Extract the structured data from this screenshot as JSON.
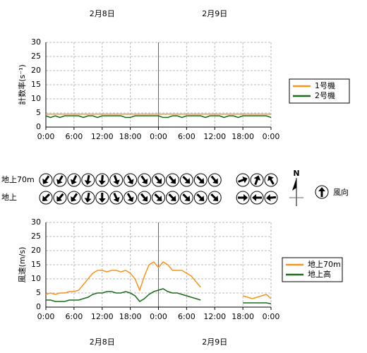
{
  "date_labels": [
    "2月8日",
    "2月9日"
  ],
  "chart_data": [
    {
      "type": "line",
      "ylabel": "計数率(s⁻¹)",
      "xlim": [
        0,
        48
      ],
      "ylim": [
        0,
        30
      ],
      "yticks": [
        0,
        5,
        10,
        15,
        20,
        25,
        30
      ],
      "xticks": [
        {
          "value": 0,
          "label": "0:00"
        },
        {
          "value": 6,
          "label": "6:00"
        },
        {
          "value": 12,
          "label": "12:00"
        },
        {
          "value": 18,
          "label": "18:00"
        },
        {
          "value": 24,
          "label": "0:00"
        },
        {
          "value": 30,
          "label": "6:00"
        },
        {
          "value": 36,
          "label": "12:00"
        },
        {
          "value": 42,
          "label": "18:00"
        },
        {
          "value": 48,
          "label": "0:00"
        }
      ],
      "grid": true,
      "day_boundary": 24,
      "x": [
        0,
        1,
        2,
        3,
        4,
        5,
        6,
        7,
        8,
        9,
        10,
        11,
        12,
        13,
        14,
        15,
        16,
        17,
        18,
        19,
        20,
        21,
        22,
        23,
        24,
        25,
        26,
        27,
        28,
        29,
        30,
        31,
        32,
        33,
        34,
        35,
        36,
        37,
        38,
        39,
        40,
        41,
        42,
        43,
        44,
        45,
        46,
        47,
        48
      ],
      "series": [
        {
          "name": "1号機",
          "color": "#f7941d",
          "values": [
            4.6,
            4.6,
            4.6,
            4.6,
            4.6,
            4.6,
            4.6,
            4.6,
            4.6,
            4.6,
            4.6,
            4.6,
            4.6,
            4.6,
            4.6,
            4.6,
            4.6,
            4.6,
            4.6,
            4.6,
            4.6,
            4.6,
            4.6,
            4.6,
            4.6,
            4.6,
            4.6,
            4.6,
            4.6,
            4.6,
            4.6,
            4.6,
            4.6,
            4.6,
            4.6,
            4.6,
            4.6,
            4.6,
            4.6,
            4.6,
            4.6,
            4.6,
            4.6,
            4.6,
            4.6,
            4.6,
            4.6,
            4.6,
            4.6
          ]
        },
        {
          "name": "2号機",
          "color": "#1a6b1a",
          "values": [
            4,
            3.4,
            4,
            3.4,
            4,
            4,
            4,
            4,
            3.4,
            4,
            4,
            3.4,
            4,
            4,
            4,
            4,
            4,
            3.4,
            3.4,
            4,
            4,
            4,
            4,
            4,
            4,
            3.4,
            3.4,
            4,
            4,
            3.4,
            4,
            4,
            4,
            4,
            3.4,
            4,
            4,
            4,
            3.4,
            4,
            4,
            3.4,
            4,
            4,
            4,
            4,
            4,
            4,
            3.4
          ]
        }
      ]
    },
    {
      "type": "wind_direction",
      "x": [
        0,
        3,
        6,
        9,
        12,
        15,
        18,
        21,
        24,
        27,
        30,
        33,
        36,
        39,
        42,
        45,
        48
      ],
      "legend_label": "風向",
      "compass": "N",
      "series": [
        {
          "name": "地上70m",
          "values": [
            215,
            210,
            205,
            190,
            185,
            160,
            150,
            145,
            140,
            140,
            135,
            135,
            140,
            null,
            70,
            20,
            330
          ]
        },
        {
          "name": "地上",
          "values": [
            225,
            220,
            215,
            190,
            180,
            155,
            150,
            140,
            135,
            135,
            135,
            135,
            135,
            null,
            90,
            270,
            265
          ]
        }
      ]
    },
    {
      "type": "line",
      "ylabel": "風速(m/s)",
      "xlim": [
        0,
        48
      ],
      "ylim": [
        0,
        30
      ],
      "yticks": [
        0,
        5,
        10,
        15,
        20,
        25,
        30
      ],
      "xticks": [
        {
          "value": 0,
          "label": "0:00"
        },
        {
          "value": 6,
          "label": "6:00"
        },
        {
          "value": 12,
          "label": "12:00"
        },
        {
          "value": 18,
          "label": "18:00"
        },
        {
          "value": 24,
          "label": "0:00"
        },
        {
          "value": 30,
          "label": "6:00"
        },
        {
          "value": 36,
          "label": "12:00"
        },
        {
          "value": 42,
          "label": "18:00"
        },
        {
          "value": 48,
          "label": "0:00"
        }
      ],
      "grid": true,
      "day_boundary": 24,
      "x": [
        0,
        1,
        2,
        3,
        4,
        5,
        6,
        7,
        8,
        9,
        10,
        11,
        12,
        13,
        14,
        15,
        16,
        17,
        18,
        19,
        20,
        21,
        22,
        23,
        24,
        25,
        26,
        27,
        28,
        29,
        30,
        31,
        32,
        33,
        34,
        35,
        36,
        37,
        38,
        39,
        40,
        41,
        42,
        43,
        44,
        45,
        46,
        47,
        48
      ],
      "series": [
        {
          "name": "地上70m",
          "color": "#f7941d",
          "values": [
            4.5,
            5,
            4.5,
            5,
            5,
            5.5,
            5.5,
            6,
            8,
            10,
            12,
            13,
            13,
            12.5,
            13,
            13,
            12.5,
            13,
            12,
            10,
            6,
            11,
            15,
            16,
            14,
            16,
            15,
            13,
            13,
            13,
            12,
            11,
            9,
            7,
            null,
            null,
            null,
            null,
            null,
            null,
            null,
            null,
            4,
            3.5,
            3,
            3.5,
            4,
            4.5,
            3
          ]
        },
        {
          "name": "地上高",
          "color": "#1a6b1a",
          "values": [
            2.5,
            2.5,
            2,
            2,
            2,
            2.5,
            2.5,
            2.5,
            3,
            3.5,
            4.5,
            5,
            5,
            5.5,
            5.5,
            5,
            5,
            5.5,
            5,
            4,
            2,
            3,
            4.5,
            5.5,
            6,
            6.5,
            5.5,
            5,
            5,
            4.5,
            4,
            3.5,
            3,
            2.5,
            null,
            null,
            null,
            null,
            null,
            null,
            null,
            null,
            1.5,
            1.5,
            1.5,
            1.5,
            1.5,
            1.5,
            1.2
          ]
        }
      ]
    }
  ]
}
